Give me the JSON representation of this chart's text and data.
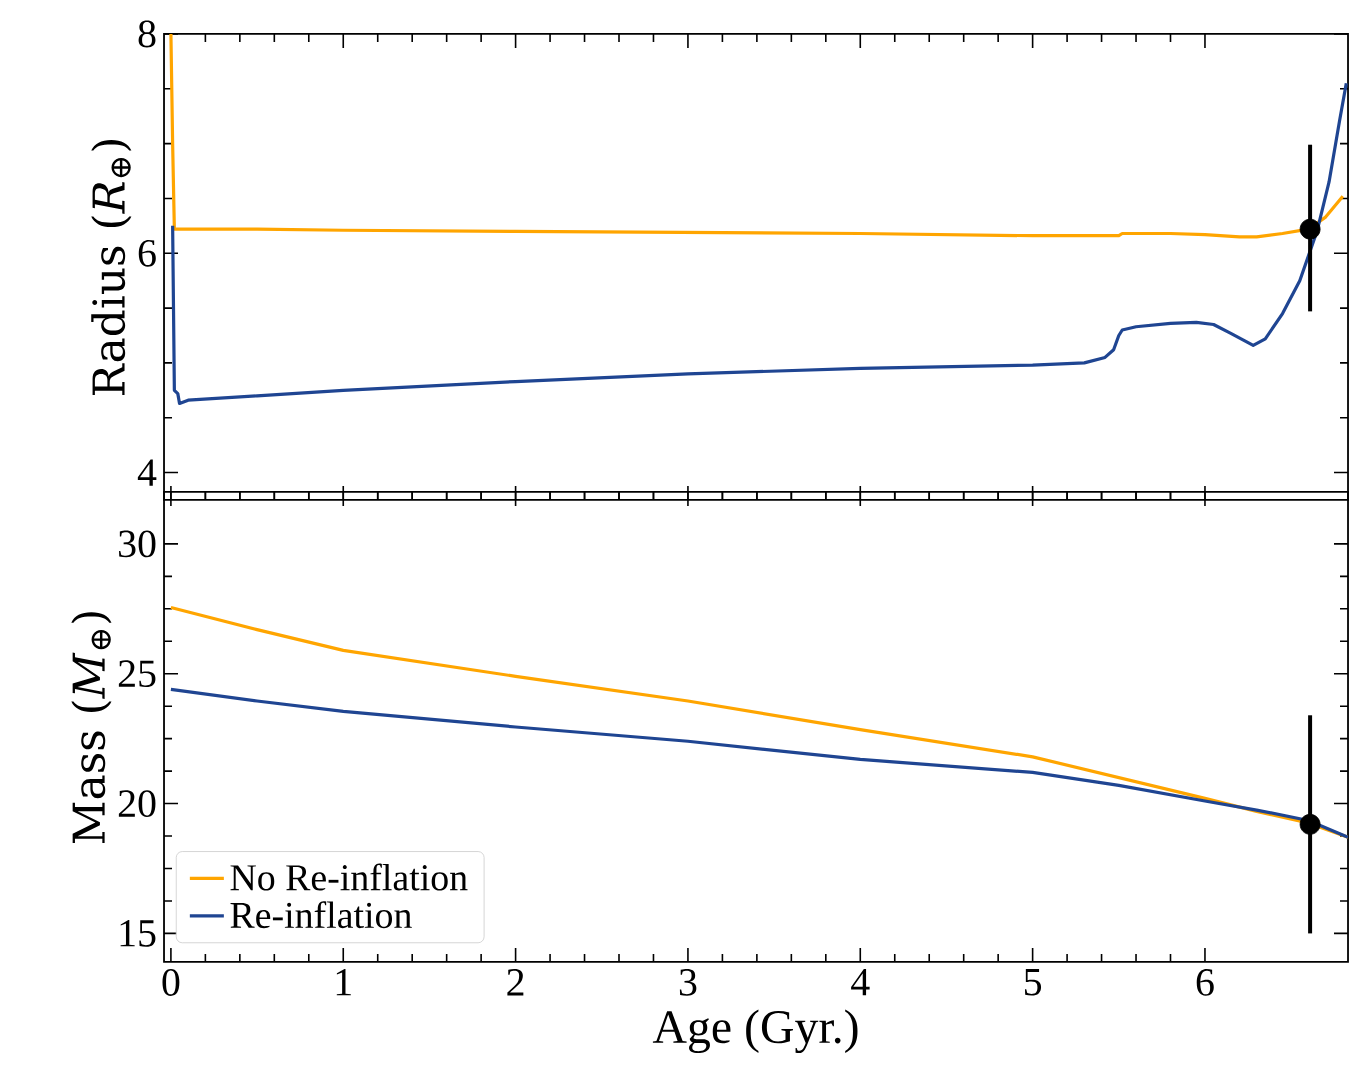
{
  "chart_data": [
    {
      "type": "line",
      "ylabel": "Radius (*R*$_{⊕}$)",
      "xlim": [
        -0.04,
        6.83
      ],
      "ylim": [
        3.75,
        8
      ],
      "xticks": [
        0,
        1,
        2,
        3,
        4,
        5,
        6
      ],
      "yticks": [
        4,
        6,
        8
      ],
      "tick_labels": "y",
      "series": [
        {
          "color": "#ffa500",
          "x": [
            0.0,
            0.01,
            0.02,
            0.05,
            0.5,
            1,
            2,
            3,
            4,
            5,
            5.45,
            5.5,
            5.52,
            5.8,
            6.0,
            6.2,
            6.3,
            6.45,
            6.6,
            6.7,
            6.8
          ],
          "values": [
            8,
            7.0,
            6.22,
            6.22,
            6.22,
            6.21,
            6.2,
            6.19,
            6.18,
            6.16,
            6.16,
            6.16,
            6.18,
            6.18,
            6.17,
            6.15,
            6.15,
            6.18,
            6.22,
            6.33,
            6.52
          ]
        },
        {
          "color": "#1f4592",
          "x": [
            0.01,
            0.015,
            0.02,
            0.04,
            0.05,
            0.1,
            0.5,
            1,
            2,
            3,
            4,
            5,
            5.3,
            5.42,
            5.47,
            5.5,
            5.52,
            5.6,
            5.8,
            5.95,
            6.05,
            6.15,
            6.28,
            6.35,
            6.45,
            6.55,
            6.65,
            6.72,
            6.78,
            6.82
          ],
          "values": [
            6.25,
            5.5,
            4.75,
            4.72,
            4.63,
            4.66,
            4.7,
            4.75,
            4.83,
            4.9,
            4.95,
            4.98,
            5.0,
            5.05,
            5.12,
            5.25,
            5.3,
            5.33,
            5.36,
            5.37,
            5.35,
            5.27,
            5.16,
            5.22,
            5.45,
            5.75,
            6.2,
            6.65,
            7.2,
            7.55
          ]
        },
        {
          "type": "scatter",
          "color": "#000000",
          "x": [
            6.61
          ],
          "values": [
            6.22
          ],
          "errors": [
            [
              5.47,
              6.99
            ]
          ]
        }
      ]
    },
    {
      "type": "line",
      "xlabel": "Age (Gyr.)",
      "ylabel": "Mass (*M*$_{⊕}$)",
      "xlim": [
        -0.04,
        6.83
      ],
      "ylim": [
        13.9,
        32
      ],
      "xticks": [
        0,
        1,
        2,
        3,
        4,
        5,
        6
      ],
      "yticks": [
        15,
        20,
        25,
        30
      ],
      "legend": "bottom left",
      "series": [
        {
          "name": "No Re-inflation",
          "color": "#ffa500",
          "x": [
            0.0,
            0.5,
            1,
            2,
            3,
            4,
            5,
            5.5,
            6,
            6.3,
            6.6,
            6.83
          ],
          "values": [
            27.55,
            26.7,
            25.9,
            24.9,
            23.95,
            22.85,
            21.8,
            21.0,
            20.2,
            19.7,
            19.25,
            18.7
          ]
        },
        {
          "name": "Re-inflation",
          "color": "#1f4592",
          "x": [
            0.0,
            0.5,
            1,
            2,
            3,
            4,
            5,
            5.5,
            6,
            6.3,
            6.6,
            6.83
          ],
          "values": [
            24.4,
            23.95,
            23.55,
            22.95,
            22.4,
            21.7,
            21.2,
            20.7,
            20.1,
            19.75,
            19.35,
            18.7
          ]
        },
        {
          "type": "scatter",
          "color": "#000000",
          "x": [
            6.61
          ],
          "values": [
            19.2
          ],
          "errors": [
            [
              15.0,
              23.4
            ]
          ]
        }
      ]
    }
  ]
}
